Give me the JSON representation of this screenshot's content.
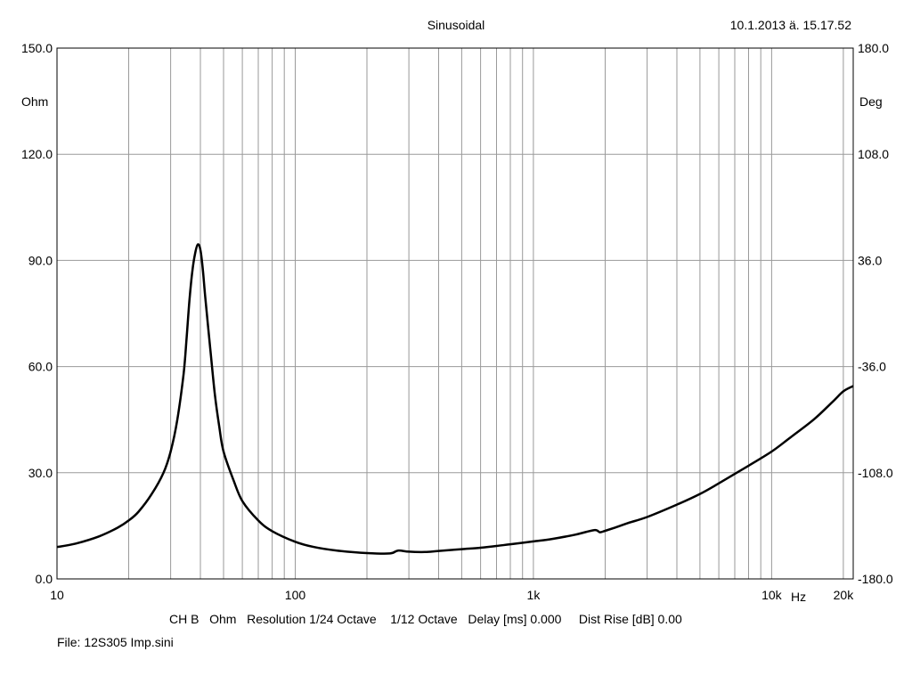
{
  "header": {
    "title": "Sinusoidal",
    "timestamp": "10.1.2013 ä. 15.17.52"
  },
  "footer": {
    "info": "CH B   Ohm   Resolution 1/24 Octave    1/12 Octave   Delay [ms] 0.000     Dist Rise [dB] 0.00",
    "file": "File: 12S305 Imp.sini"
  },
  "chart_data": {
    "type": "line",
    "title": "Sinusoidal",
    "x_scale": "log",
    "xlim": [
      10,
      22000
    ],
    "ylim": [
      0,
      150
    ],
    "y2lim": [
      -180,
      180
    ],
    "ylabel": "Ohm",
    "y2label": "Deg",
    "x_unit_label": "Hz",
    "grid": true,
    "line_color": "#000000",
    "x_ticks": [
      {
        "value": 10,
        "label": "10"
      },
      {
        "value": 100,
        "label": "100"
      },
      {
        "value": 1000,
        "label": "1k"
      },
      {
        "value": 10000,
        "label": "10k"
      },
      {
        "value": 20000,
        "label": "20k"
      }
    ],
    "y_ticks": [
      {
        "value": 0,
        "label": "0.0"
      },
      {
        "value": 30,
        "label": "30.0"
      },
      {
        "value": 60,
        "label": "60.0"
      },
      {
        "value": 90,
        "label": "90.0"
      },
      {
        "value": 120,
        "label": "120.0"
      },
      {
        "value": 150,
        "label": "150.0"
      }
    ],
    "y2_ticks": [
      {
        "value": -180,
        "label": "-180.0"
      },
      {
        "value": -108,
        "label": "-108.0"
      },
      {
        "value": -36,
        "label": "-36.0"
      },
      {
        "value": 36,
        "label": "36.0"
      },
      {
        "value": 108,
        "label": "108.0"
      },
      {
        "value": 180,
        "label": "180.0"
      }
    ],
    "series": [
      {
        "x": [
          10,
          12,
          15,
          18,
          20,
          22,
          25,
          28,
          30,
          32,
          34,
          35,
          36,
          37,
          38,
          39,
          40,
          41,
          42,
          44,
          46,
          48,
          50,
          55,
          60,
          70,
          80,
          100,
          120,
          150,
          200,
          250,
          270,
          300,
          350,
          400,
          500,
          600,
          700,
          800,
          1000,
          1200,
          1500,
          1800,
          1900,
          2000,
          2200,
          2500,
          3000,
          4000,
          5000,
          6000,
          8000,
          10000,
          12000,
          15000,
          18000,
          20000,
          22000
        ],
        "y": [
          9,
          10,
          12,
          14.5,
          16.5,
          19,
          24,
          30,
          36,
          45,
          58,
          68,
          79,
          87,
          92,
          94.5,
          93,
          87,
          79,
          65,
          52,
          43,
          36,
          28,
          22,
          16.5,
          13.5,
          10.5,
          9,
          8,
          7.3,
          7.2,
          8,
          7.7,
          7.6,
          7.9,
          8.4,
          8.8,
          9.3,
          9.8,
          10.6,
          11.3,
          12.5,
          13.8,
          13.2,
          13.6,
          14.5,
          15.8,
          17.5,
          21,
          24,
          27,
          32,
          36,
          40,
          45,
          50,
          53,
          54.5
        ]
      }
    ]
  }
}
